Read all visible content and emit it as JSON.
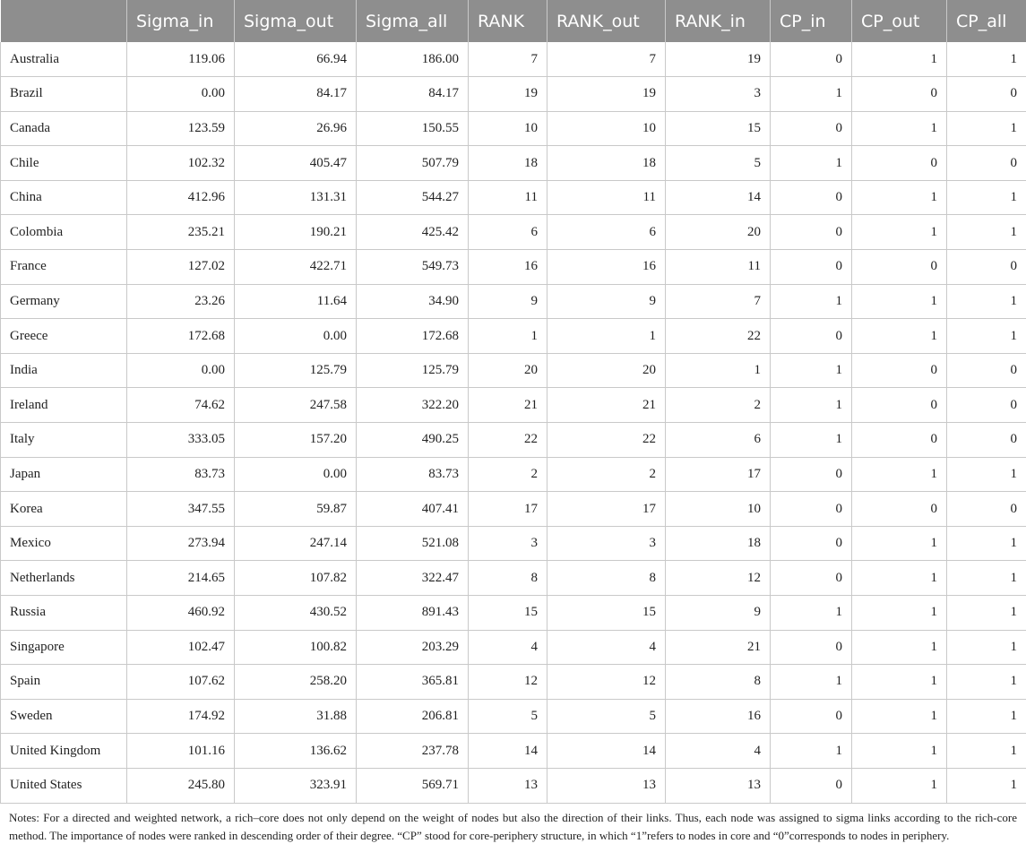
{
  "table": {
    "columns": [
      "",
      "Sigma_in",
      "Sigma_out",
      "Sigma_all",
      "RANK",
      "RANK_out",
      "RANK_in",
      "CP_in",
      "CP_out",
      "CP_all"
    ],
    "rows": [
      [
        "Australia",
        "119.06",
        "66.94",
        "186.00",
        "7",
        "7",
        "19",
        "0",
        "1",
        "1"
      ],
      [
        "Brazil",
        "0.00",
        "84.17",
        "84.17",
        "19",
        "19",
        "3",
        "1",
        "0",
        "0"
      ],
      [
        "Canada",
        "123.59",
        "26.96",
        "150.55",
        "10",
        "10",
        "15",
        "0",
        "1",
        "1"
      ],
      [
        "Chile",
        "102.32",
        "405.47",
        "507.79",
        "18",
        "18",
        "5",
        "1",
        "0",
        "0"
      ],
      [
        "China",
        "412.96",
        "131.31",
        "544.27",
        "11",
        "11",
        "14",
        "0",
        "1",
        "1"
      ],
      [
        "Colombia",
        "235.21",
        "190.21",
        "425.42",
        "6",
        "6",
        "20",
        "0",
        "1",
        "1"
      ],
      [
        "France",
        "127.02",
        "422.71",
        "549.73",
        "16",
        "16",
        "11",
        "0",
        "0",
        "0"
      ],
      [
        "Germany",
        "23.26",
        "11.64",
        "34.90",
        "9",
        "9",
        "7",
        "1",
        "1",
        "1"
      ],
      [
        "Greece",
        "172.68",
        "0.00",
        "172.68",
        "1",
        "1",
        "22",
        "0",
        "1",
        "1"
      ],
      [
        "India",
        "0.00",
        "125.79",
        "125.79",
        "20",
        "20",
        "1",
        "1",
        "0",
        "0"
      ],
      [
        "Ireland",
        "74.62",
        "247.58",
        "322.20",
        "21",
        "21",
        "2",
        "1",
        "0",
        "0"
      ],
      [
        "Italy",
        "333.05",
        "157.20",
        "490.25",
        "22",
        "22",
        "6",
        "1",
        "0",
        "0"
      ],
      [
        "Japan",
        "83.73",
        "0.00",
        "83.73",
        "2",
        "2",
        "17",
        "0",
        "1",
        "1"
      ],
      [
        "Korea",
        "347.55",
        "59.87",
        "407.41",
        "17",
        "17",
        "10",
        "0",
        "0",
        "0"
      ],
      [
        "Mexico",
        "273.94",
        "247.14",
        "521.08",
        "3",
        "3",
        "18",
        "0",
        "1",
        "1"
      ],
      [
        "Netherlands",
        "214.65",
        "107.82",
        "322.47",
        "8",
        "8",
        "12",
        "0",
        "1",
        "1"
      ],
      [
        "Russia",
        "460.92",
        "430.52",
        "891.43",
        "15",
        "15",
        "9",
        "1",
        "1",
        "1"
      ],
      [
        "Singapore",
        "102.47",
        "100.82",
        "203.29",
        "4",
        "4",
        "21",
        "0",
        "1",
        "1"
      ],
      [
        "Spain",
        "107.62",
        "258.20",
        "365.81",
        "12",
        "12",
        "8",
        "1",
        "1",
        "1"
      ],
      [
        "Sweden",
        "174.92",
        "31.88",
        "206.81",
        "5",
        "5",
        "16",
        "0",
        "1",
        "1"
      ],
      [
        "United Kingdom",
        "101.16",
        "136.62",
        "237.78",
        "14",
        "14",
        "4",
        "1",
        "1",
        "1"
      ],
      [
        "United States",
        "245.80",
        "323.91",
        "569.71",
        "13",
        "13",
        "13",
        "0",
        "1",
        "1"
      ]
    ]
  },
  "notes": "Notes: For a directed and weighted network, a rich–core does not only depend on the weight of nodes but also the direction of their links. Thus, each node was assigned to sigma links according to the rich-core method. The importance of nodes were ranked in descending order of their degree. “CP” stood for core-periphery structure, in which “1”refers to nodes in core and “0”corresponds to nodes in periphery."
}
